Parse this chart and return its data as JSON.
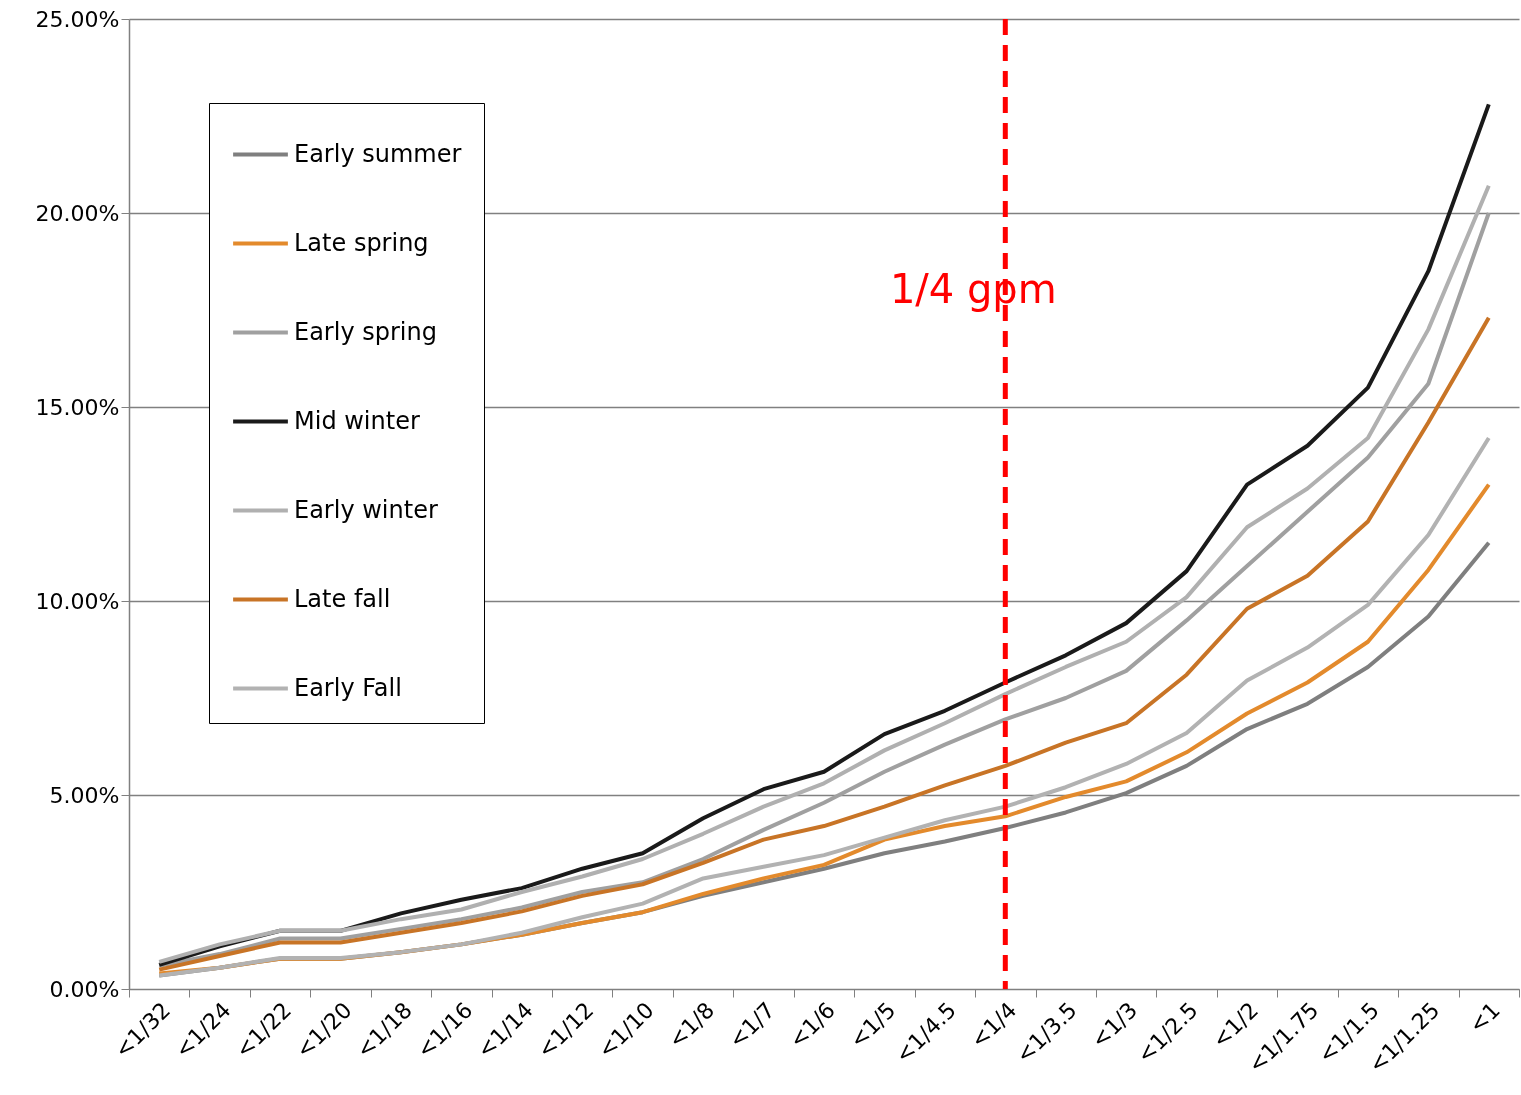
{
  "chart_data": {
    "type": "line",
    "categories": [
      "<1/32",
      "<1/24",
      "<1/22",
      "<1/20",
      "<1/18",
      "<1/16",
      "<1/14",
      "<1/12",
      "<1/10",
      "<1/8",
      "<1/7",
      "<1/6",
      "<1/5",
      "<1/4.5",
      "<1/4",
      "<1/3.5",
      "<1/3",
      "<1/2.5",
      "<1/2",
      "<1/1.75",
      "<1/1.5",
      "<1/1.25",
      "<1"
    ],
    "series": [
      {
        "name": "Early summer",
        "color": "#7f7f7f",
        "values": [
          0.35,
          0.55,
          0.78,
          0.78,
          0.95,
          1.15,
          1.4,
          1.7,
          1.98,
          2.4,
          2.75,
          3.1,
          3.5,
          3.8,
          4.15,
          4.55,
          5.05,
          5.75,
          6.7,
          7.35,
          8.3,
          9.6,
          11.5
        ]
      },
      {
        "name": "Late spring",
        "color": "#e38a2c",
        "values": [
          0.4,
          0.55,
          0.78,
          0.78,
          0.95,
          1.15,
          1.4,
          1.7,
          1.98,
          2.45,
          2.85,
          3.2,
          3.85,
          4.2,
          4.45,
          4.95,
          5.35,
          6.1,
          7.1,
          7.9,
          8.95,
          10.8,
          13.0
        ]
      },
      {
        "name": "Early spring",
        "color": "#a0a0a0",
        "values": [
          0.6,
          0.9,
          1.3,
          1.3,
          1.55,
          1.8,
          2.1,
          2.5,
          2.75,
          3.35,
          4.1,
          4.8,
          5.6,
          6.3,
          6.95,
          7.5,
          8.2,
          9.5,
          10.9,
          12.3,
          13.7,
          15.6,
          20.0
        ]
      },
      {
        "name": "Mid winter",
        "color": "#1a1a1a",
        "values": [
          0.62,
          1.1,
          1.5,
          1.5,
          1.95,
          2.3,
          2.6,
          3.1,
          3.5,
          4.4,
          5.15,
          5.6,
          6.57,
          7.17,
          7.9,
          8.6,
          9.43,
          10.77,
          13.0,
          14.0,
          15.5,
          18.5,
          22.8
        ]
      },
      {
        "name": "Early winter",
        "color": "#b0b0b0",
        "values": [
          0.7,
          1.15,
          1.5,
          1.5,
          1.8,
          2.05,
          2.5,
          2.9,
          3.35,
          4.0,
          4.7,
          5.3,
          6.15,
          6.85,
          7.6,
          8.3,
          8.95,
          10.1,
          11.9,
          12.9,
          14.2,
          17.0,
          20.7
        ]
      },
      {
        "name": "Late fall",
        "color": "#c87426",
        "values": [
          0.5,
          0.85,
          1.2,
          1.2,
          1.45,
          1.7,
          2.0,
          2.4,
          2.7,
          3.25,
          3.85,
          4.2,
          4.7,
          5.25,
          5.75,
          6.35,
          6.85,
          8.1,
          9.8,
          10.65,
          12.05,
          14.6,
          17.3
        ]
      },
      {
        "name": "Early Fall",
        "color": "#b2b2b2",
        "values": [
          0.35,
          0.55,
          0.8,
          0.8,
          0.95,
          1.15,
          1.45,
          1.85,
          2.2,
          2.85,
          3.15,
          3.45,
          3.9,
          4.35,
          4.7,
          5.2,
          5.8,
          6.6,
          7.95,
          8.8,
          9.9,
          11.7,
          14.2
        ]
      }
    ],
    "ylim": [
      0,
      25
    ],
    "yticks": [
      {
        "value": 0,
        "label": "0.00%"
      },
      {
        "value": 5,
        "label": "5.00%"
      },
      {
        "value": 10,
        "label": "10.00%"
      },
      {
        "value": 15,
        "label": "15.00%"
      },
      {
        "value": 20,
        "label": "20.00%"
      },
      {
        "value": 25,
        "label": "25.00%"
      }
    ],
    "grid": "y",
    "legend": "top left",
    "ref_lines": [
      {
        "axis": "x",
        "value": "<1/4",
        "label": "1/4 gpm",
        "color": "#ff0000",
        "line_style": "dashed"
      }
    ]
  }
}
